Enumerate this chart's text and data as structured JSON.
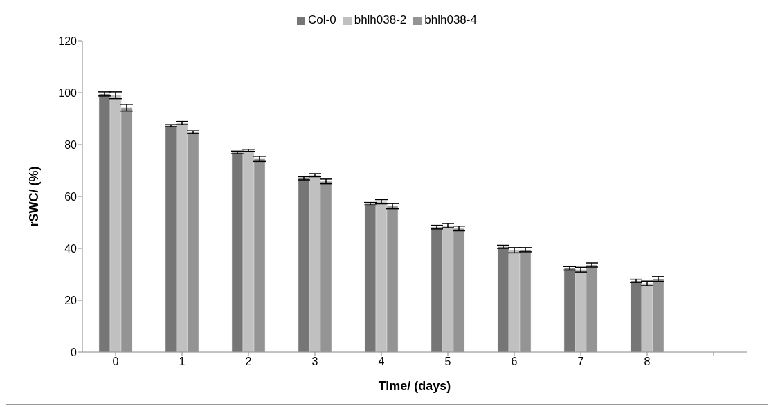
{
  "chart_data": {
    "type": "bar",
    "xlabel": "Time/ (days)",
    "ylabel": "rSWC/ (%)",
    "categories": [
      "0",
      "1",
      "2",
      "3",
      "4",
      "5",
      "6",
      "7",
      "8",
      null
    ],
    "series": [
      {
        "name": "Col-0",
        "color": "#767676",
        "values": [
          99.5,
          87.3,
          77,
          67,
          57.2,
          48.2,
          40.6,
          32.3,
          27.5,
          null
        ],
        "errors": [
          0.8,
          0.4,
          0.5,
          0.6,
          0.5,
          0.7,
          0.6,
          0.7,
          0.6,
          null
        ]
      },
      {
        "name": "bhlh038-2",
        "color": "#c0c0c0",
        "values": [
          99,
          88.3,
          77.8,
          68.2,
          58,
          48.8,
          39.3,
          31.8,
          26.5,
          null
        ],
        "errors": [
          1.3,
          0.6,
          0.4,
          0.6,
          0.8,
          0.8,
          1,
          0.9,
          0.9,
          null
        ]
      },
      {
        "name": "bhlh038-4",
        "color": "#949494",
        "values": [
          94.2,
          84.8,
          74.5,
          65.8,
          56.3,
          47.7,
          39.5,
          33.6,
          28.2,
          null
        ],
        "errors": [
          1.3,
          0.5,
          1,
          0.9,
          1,
          0.9,
          0.8,
          0.8,
          0.9,
          null
        ]
      }
    ],
    "ylim": [
      0,
      120
    ],
    "yticks": [
      0,
      20,
      40,
      60,
      80,
      100,
      120
    ],
    "grid": false,
    "legend": "top"
  }
}
